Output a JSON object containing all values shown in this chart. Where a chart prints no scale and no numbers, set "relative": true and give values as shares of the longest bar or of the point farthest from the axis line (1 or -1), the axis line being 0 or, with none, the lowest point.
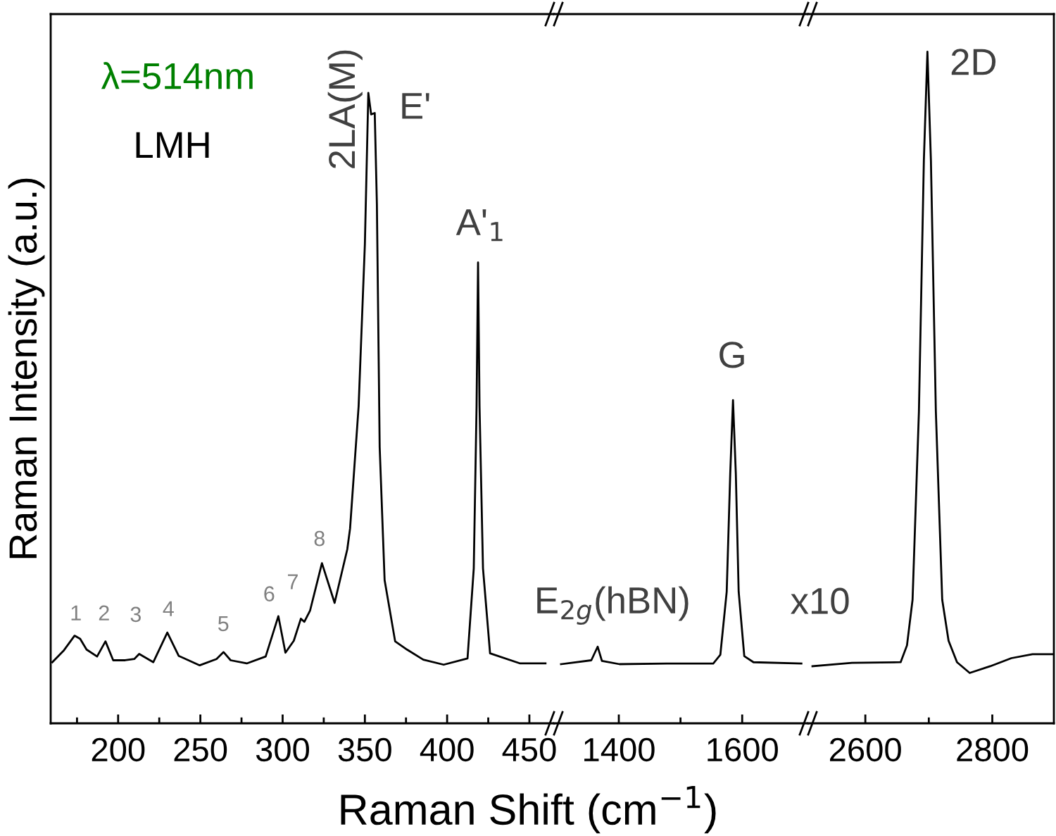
{
  "chart_data": [
    {
      "type": "line",
      "relative": true,
      "ylabel": "Raman Intensity (a.u.)",
      "xlim": [
        159,
        465
      ],
      "xticks": [
        {
          "value": 175,
          "label": null
        },
        200,
        {
          "value": 225,
          "label": null
        },
        250,
        {
          "value": 275,
          "label": null
        },
        300,
        {
          "value": 325,
          "label": null
        },
        350,
        {
          "value": 375,
          "label": null
        },
        400,
        {
          "value": 425,
          "label": null
        },
        450
      ],
      "series": [
        {
          "color": "#000000",
          "x": [
            160,
            167.1,
            173.5,
            176.9,
            180.8,
            187.2,
            192.3,
            197.0,
            204.3,
            209.8,
            212.8,
            221.4,
            229.9,
            236.8,
            249.6,
            259.8,
            264.1,
            268.4,
            278.2,
            289.7,
            297.4,
            301.7,
            306.8,
            311.1,
            313.2,
            316.7,
            323.9,
            331.6,
            339.3,
            341.0,
            346.2,
            350.0,
            352.1,
            353.8,
            356.0,
            357.3,
            359.0,
            362.0,
            368.4,
            375.6,
            385.5,
            397.9,
            412.4,
            416.2,
            417.9,
            418.8,
            419.7,
            421.8,
            426.1,
            444.4,
            459.8
          ],
          "values": [
            0.097,
            0.116,
            0.139,
            0.134,
            0.117,
            0.106,
            0.13,
            0.1,
            0.1,
            0.102,
            0.11,
            0.097,
            0.144,
            0.107,
            0.092,
            0.102,
            0.113,
            0.1,
            0.095,
            0.106,
            0.17,
            0.112,
            0.131,
            0.166,
            0.161,
            0.179,
            0.254,
            0.191,
            0.276,
            0.309,
            0.503,
            0.76,
            1,
            0.966,
            0.968,
            0.824,
            0.438,
            0.227,
            0.13,
            0.117,
            0.101,
            0.093,
            0.103,
            0.246,
            0.503,
            0.731,
            0.503,
            0.246,
            0.111,
            0.095,
            0.095
          ]
        }
      ],
      "annotations": [
        "λ=514nm",
        "LMH",
        "1",
        "2",
        "3",
        "4",
        "5",
        "6",
        "7",
        "8",
        "2LA(M)",
        "E'",
        "A'$_{1}$"
      ]
    },
    {
      "type": "line",
      "relative": true,
      "xlabel": "Raman Shift (cm$^{−1}$)",
      "xlim": [
        1295,
        1707
      ],
      "xticks": [
        1400,
        {
          "value": 1500,
          "label": null
        },
        1600
      ],
      "series": [
        {
          "color": "#000000",
          "x": [
            1306.3,
            1355.4,
            1365.7,
            1372.6,
            1401.1,
            1477.7,
            1553.1,
            1564.6,
            1574.9,
            1580.6,
            1585.1,
            1589.7,
            1594.3,
            1603.4,
            1618.3,
            1696
          ],
          "values": [
            0.183,
            0.195,
            0.237,
            0.193,
            0.183,
            0.185,
            0.185,
            0.212,
            0.407,
            0.771,
            1,
            0.771,
            0.407,
            0.208,
            0.189,
            0.185
          ]
        }
      ],
      "annotations": [
        "E$_{2g}$(hBN)",
        "G"
      ]
    },
    {
      "type": "line",
      "relative": true,
      "xlim": [
        2510,
        2897
      ],
      "xticks": [
        2600,
        {
          "value": 2700,
          "label": null
        },
        2800
      ],
      "series": [
        {
          "color": "#000000",
          "x": [
            2516.7,
            2578.9,
            2655.6,
            2665.6,
            2674.4,
            2684.4,
            2692.2,
            2697.8,
            2703.3,
            2711.1,
            2721.1,
            2731.1,
            2744.4,
            2764.4,
            2796.7,
            2830,
            2863.3,
            2895.6
          ],
          "values": [
            0.085,
            0.09,
            0.091,
            0.116,
            0.184,
            0.464,
            0.838,
            1,
            0.838,
            0.464,
            0.184,
            0.123,
            0.091,
            0.075,
            0.085,
            0.097,
            0.103,
            0.103
          ]
        }
      ],
      "annotations": [
        "x10",
        "2D"
      ]
    }
  ]
}
